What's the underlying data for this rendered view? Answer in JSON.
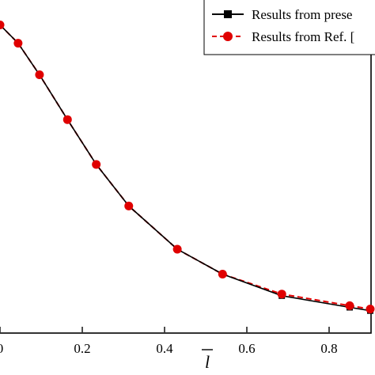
{
  "chart_data": {
    "type": "line",
    "xlabel": "l",
    "ylabel": "",
    "xlim": [
      0.0,
      0.9
    ],
    "x_ticks": [
      "0",
      "0.2",
      "0.4",
      "0.6",
      "0.8"
    ],
    "x_tick_values": [
      0.0,
      0.2,
      0.4,
      0.6,
      0.8
    ],
    "legend_position": "top-right",
    "series": [
      {
        "name": "Results from prese",
        "color": "#000000",
        "marker": "square",
        "line_style": "solid",
        "x": [
          0.0,
          0.044,
          0.096,
          0.164,
          0.234,
          0.313,
          0.431,
          0.541,
          0.685,
          0.85,
          0.9
        ],
        "y": [
          0.1,
          0.089,
          0.07,
          0.043,
          0.016,
          -0.009,
          -0.035,
          -0.05,
          -0.063,
          -0.07,
          -0.072
        ]
      },
      {
        "name": "Results from Ref. [",
        "color": "#e00000",
        "marker": "circle",
        "line_style": "dashed",
        "x": [
          0.0,
          0.044,
          0.096,
          0.164,
          0.234,
          0.313,
          0.431,
          0.541,
          0.685,
          0.85,
          0.9
        ],
        "y": [
          0.1,
          0.089,
          0.07,
          0.043,
          0.016,
          -0.009,
          -0.035,
          -0.05,
          -0.062,
          -0.069,
          -0.071
        ]
      }
    ]
  }
}
